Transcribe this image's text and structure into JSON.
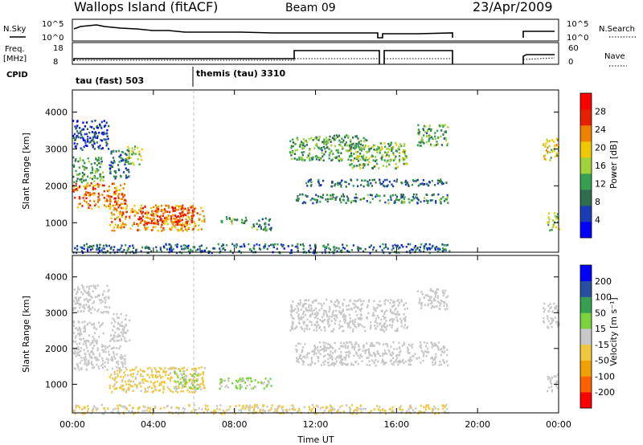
{
  "header": {
    "title": "Wallops Island (fitACF)",
    "beam": "Beam 09",
    "date": "23/Apr/2009"
  },
  "top_panels": {
    "nsky_label": "N.Sky",
    "nsky_ticks": [
      "10^5",
      "10^0"
    ],
    "nsearch_label": "N.Search",
    "freq_label_1": "Freq.",
    "freq_label_2": "[MHz]",
    "freq_ticks": [
      "18",
      "8"
    ],
    "nave_label": "Nave",
    "nave_ticks": [
      "60",
      "0"
    ],
    "cpid_label": "CPID",
    "modes": [
      {
        "label": "tau (fast) 503",
        "start_hour": 0.0
      },
      {
        "label": "themis (tau) 3310",
        "start_hour": 6.0
      }
    ]
  },
  "x_axis": {
    "label": "Time UT",
    "ticks": [
      "00:00",
      "04:00",
      "08:00",
      "12:00",
      "16:00",
      "20:00",
      "00:00"
    ],
    "range_hours": [
      0,
      24
    ]
  },
  "chart_data": [
    {
      "type": "heatmap",
      "name": "power",
      "ylabel": "Slant Range [km]",
      "yticks": [
        "1000",
        "2000",
        "3000",
        "4000"
      ],
      "ylim": [
        200,
        4600
      ],
      "colorbar": {
        "label": "Power [dB]",
        "ticks": [
          "28",
          "24",
          "20",
          "16",
          "12",
          "8",
          "4"
        ],
        "range": [
          0,
          32
        ],
        "colors": [
          "#0000ff",
          "#1a3cb4",
          "#2d6e4e",
          "#37a050",
          "#a0d23c",
          "#f0c800",
          "#f08000",
          "#e62000",
          "#ff0000"
        ]
      },
      "echo_regions": [
        {
          "t": [
            0.0,
            2.6
          ],
          "r": [
            1400,
            2100
          ],
          "level": 24
        },
        {
          "t": [
            0.0,
            1.5
          ],
          "r": [
            2100,
            2800
          ],
          "level": 12
        },
        {
          "t": [
            0.0,
            1.8
          ],
          "r": [
            3000,
            3800
          ],
          "level": 6
        },
        {
          "t": [
            1.8,
            2.8
          ],
          "r": [
            2200,
            3000
          ],
          "level": 8
        },
        {
          "t": [
            2.6,
            3.4
          ],
          "r": [
            2600,
            3100
          ],
          "level": 16
        },
        {
          "t": [
            1.8,
            6.5
          ],
          "r": [
            800,
            1500
          ],
          "level": 22
        },
        {
          "t": [
            3.2,
            6.0
          ],
          "r": [
            1000,
            1450
          ],
          "level": 26
        },
        {
          "t": [
            7.2,
            8.6
          ],
          "r": [
            1000,
            1200
          ],
          "level": 12
        },
        {
          "t": [
            8.8,
            9.8
          ],
          "r": [
            800,
            1150
          ],
          "level": 10
        },
        {
          "t": [
            10.7,
            14.5
          ],
          "r": [
            2700,
            3400
          ],
          "level": 12
        },
        {
          "t": [
            13.5,
            16.5
          ],
          "r": [
            2500,
            3200
          ],
          "level": 14
        },
        {
          "t": [
            11.0,
            18.5
          ],
          "r": [
            1550,
            1800
          ],
          "level": 10
        },
        {
          "t": [
            11.5,
            18.5
          ],
          "r": [
            2000,
            2200
          ],
          "level": 8
        },
        {
          "t": [
            17.0,
            18.5
          ],
          "r": [
            3100,
            3700
          ],
          "level": 12
        },
        {
          "t": [
            23.2,
            24.0
          ],
          "r": [
            2700,
            3300
          ],
          "level": 18
        },
        {
          "t": [
            23.4,
            24.0
          ],
          "r": [
            800,
            1300
          ],
          "level": 16
        },
        {
          "t": [
            0.0,
            18.6
          ],
          "r": [
            200,
            450
          ],
          "level": 8
        }
      ]
    },
    {
      "type": "heatmap",
      "name": "velocity",
      "ylabel": "Slant Range [km]",
      "yticks": [
        "1000",
        "2000",
        "3000",
        "4000"
      ],
      "ylim": [
        200,
        4600
      ],
      "colorbar": {
        "label": "Velocity [m s⁻¹]",
        "ticks": [
          "200",
          "100",
          "50",
          "15",
          "-15",
          "-50",
          "-100",
          "-200"
        ],
        "range": [
          -250,
          250
        ],
        "colors": [
          "#ff0000",
          "#ff6000",
          "#f0a000",
          "#f0c840",
          "#c8c8c8",
          "#7cd23c",
          "#37a050",
          "#2850a0",
          "#0000ff"
        ]
      },
      "echo_regions": [
        {
          "t": [
            0.0,
            2.6
          ],
          "r": [
            1400,
            2100
          ],
          "v": 0
        },
        {
          "t": [
            0.0,
            1.5
          ],
          "r": [
            2100,
            2800
          ],
          "v": 0
        },
        {
          "t": [
            0.0,
            1.8
          ],
          "r": [
            3000,
            3800
          ],
          "v": 0
        },
        {
          "t": [
            1.8,
            2.8
          ],
          "r": [
            2200,
            3000
          ],
          "v": 0
        },
        {
          "t": [
            1.8,
            6.5
          ],
          "r": [
            800,
            1500
          ],
          "v": -40
        },
        {
          "t": [
            5.0,
            6.2
          ],
          "r": [
            900,
            1400
          ],
          "v": 30
        },
        {
          "t": [
            7.2,
            9.8
          ],
          "r": [
            900,
            1200
          ],
          "v": 40
        },
        {
          "t": [
            10.7,
            16.5
          ],
          "r": [
            2500,
            3400
          ],
          "v": 0
        },
        {
          "t": [
            11.0,
            18.5
          ],
          "r": [
            1550,
            2200
          ],
          "v": 0
        },
        {
          "t": [
            17.0,
            18.5
          ],
          "r": [
            3100,
            3700
          ],
          "v": 0
        },
        {
          "t": [
            23.2,
            24.0
          ],
          "r": [
            2600,
            3300
          ],
          "v": 0
        },
        {
          "t": [
            23.4,
            24.0
          ],
          "r": [
            800,
            1300
          ],
          "v": 0
        },
        {
          "t": [
            0.0,
            18.6
          ],
          "r": [
            200,
            450
          ],
          "v": -30
        }
      ]
    }
  ]
}
